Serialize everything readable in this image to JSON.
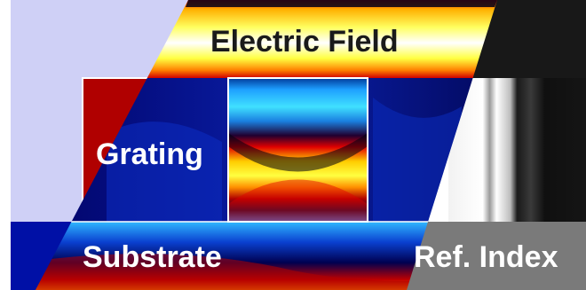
{
  "labels": {
    "electric_field": "Electric Field",
    "grating": "Grating",
    "substrate": "Substrate",
    "ref_index": "Ref. Index"
  },
  "colors": {
    "background_left": "#cfd0f6",
    "grating_red": "#b00000",
    "substrate_blue": "#0010a6",
    "field_hot": "#ffff40",
    "field_cold": "#30c8ff",
    "index_dark": "#181818",
    "index_gray": "#7a7a7a",
    "index_light": "#ececec"
  }
}
